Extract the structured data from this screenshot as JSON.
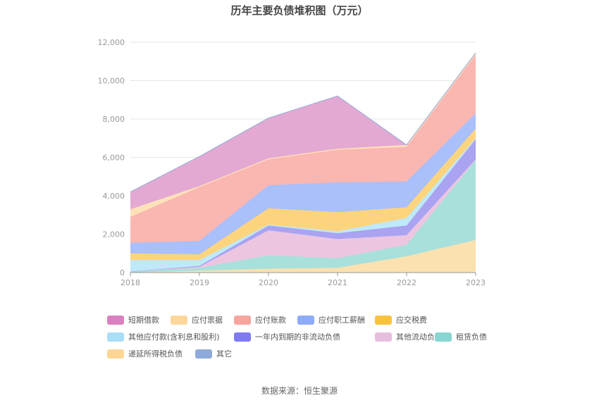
{
  "chart_data": {
    "type": "area",
    "title": "历年主要负债堆积图（万元）",
    "source": "数据来源：恒生聚源",
    "categories": [
      "2018",
      "2019",
      "2020",
      "2021",
      "2022",
      "2023"
    ],
    "y_ticks": [
      "0",
      "2,000",
      "4,000",
      "6,000",
      "8,000",
      "10,000",
      "12,000"
    ],
    "ylim": [
      0,
      12000
    ],
    "grid": true,
    "stacked": true,
    "legend_position": "bottom",
    "series": [
      {
        "name": "应付票据",
        "color": "#fbe1b0",
        "values": [
          0,
          100,
          200,
          250,
          850,
          1700
        ]
      },
      {
        "name": "租赁负债",
        "color": "#a8e0dc",
        "values": [
          50,
          150,
          700,
          500,
          600,
          4150
        ]
      },
      {
        "name": "其他流动负债",
        "color": "#ecc6e0",
        "values": [
          0,
          50,
          1300,
          1000,
          500,
          50
        ]
      },
      {
        "name": "一年内到期的非流动负债",
        "color": "#a9a3f2",
        "values": [
          0,
          50,
          250,
          300,
          500,
          1050
        ]
      },
      {
        "name": "其他应付款(含利息和股利)",
        "color": "#bfe9f9",
        "values": [
          600,
          300,
          50,
          100,
          400,
          50
        ]
      },
      {
        "name": "应交税费",
        "color": "#fdd47e",
        "values": [
          350,
          300,
          850,
          1000,
          550,
          500
        ]
      },
      {
        "name": "应付职工薪酬",
        "color": "#a9c0fb",
        "values": [
          550,
          700,
          1200,
          1550,
          1350,
          800
        ]
      },
      {
        "name": "应付账款",
        "color": "#fab6b1",
        "values": [
          1350,
          2800,
          1350,
          1700,
          1800,
          3050
        ]
      },
      {
        "name": "递延所得税负债",
        "color": "#fde2b9",
        "values": [
          400,
          50,
          50,
          50,
          100,
          100
        ]
      },
      {
        "name": "短期借款",
        "color": "#e4a9d2",
        "values": [
          900,
          1550,
          2100,
          2750,
          0,
          0
        ]
      },
      {
        "name": "其它",
        "color": "#93aedc",
        "values": [
          0,
          0,
          0,
          0,
          0,
          0
        ]
      }
    ],
    "legend": [
      {
        "name": "短期借款",
        "color": "#da80c0"
      },
      {
        "name": "应付票据",
        "color": "#fcd79c"
      },
      {
        "name": "应付账款",
        "color": "#f6a59e"
      },
      {
        "name": "应付职工薪酬",
        "color": "#8eabf7"
      },
      {
        "name": "应交税费",
        "color": "#f9c23c"
      },
      {
        "name": "其他应付款(含利息和股利)",
        "color": "#a8def8"
      },
      {
        "name": "一年内到期的非流动负债",
        "color": "#7f7af3"
      },
      {
        "name": "其他流动负债",
        "color": "#e8bee0"
      },
      {
        "name": "租赁负债",
        "color": "#88d6d2"
      },
      {
        "name": "递延所得税负债",
        "color": "#fdd594"
      },
      {
        "name": "其它",
        "color": "#8eaad8"
      }
    ]
  }
}
